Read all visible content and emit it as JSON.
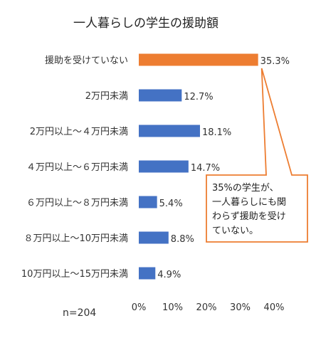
{
  "chart_data": {
    "type": "bar",
    "orientation": "horizontal",
    "title": "一人暮らしの学生の援助額",
    "categories": [
      "援助を受けていない",
      "2万円未満",
      "2万円以上～４万円未満",
      "４万円以上～６万円未満",
      "６万円以上～８万円未満",
      "８万円以上～10万円未満",
      "10万円以上～15万円未満"
    ],
    "values": [
      35.3,
      12.7,
      18.1,
      14.7,
      5.4,
      8.8,
      4.9
    ],
    "data_labels": [
      "35.3%",
      "12.7%",
      "18.1%",
      "14.7%",
      "5.4%",
      "8.8%",
      "4.9%"
    ],
    "xlim": [
      0,
      40
    ],
    "x_ticks": [
      "0%",
      "10%",
      "20%",
      "30%",
      "40%"
    ],
    "grid": false,
    "colors": {
      "highlight": "#ED7D31",
      "default": "#4472C4"
    },
    "highlight_index": 0,
    "sample_note": "n=204",
    "annotation": {
      "lines": [
        "35%の学生が、",
        "一人暮らしにも関",
        "わらず援助を受け",
        "ていない。"
      ],
      "border_color": "#ED7D31",
      "points_to": 0
    }
  }
}
